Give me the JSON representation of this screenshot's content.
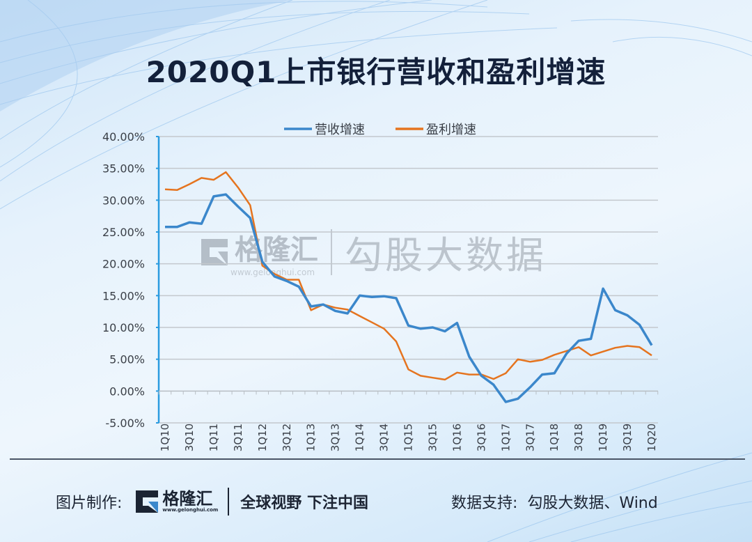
{
  "title": "2020Q1上市银行营收和盈利增速",
  "legend": [
    {
      "label": "营收增速",
      "color": "#3b87cb"
    },
    {
      "label": "盈利增速",
      "color": "#e5741f"
    }
  ],
  "watermark": {
    "logo_name": "格隆汇",
    "logo_url": "www.gelonghui.com",
    "brand": "勾股大数据"
  },
  "footer": {
    "credit_label": "图片制作:",
    "logo_name": "格隆汇",
    "logo_url": "www.gelonghui.com",
    "slogan": "全球视野 下注中国",
    "source_label": "数据支持:",
    "source_value": "勾股大数据、Wind"
  },
  "chart_data": {
    "type": "line",
    "title": "2020Q1上市银行营收和盈利增速",
    "xlabel": "",
    "ylabel": "",
    "ylim": [
      -5,
      40
    ],
    "yticks": [
      "40.00%",
      "35.00%",
      "30.00%",
      "25.00%",
      "20.00%",
      "15.00%",
      "10.00%",
      "5.00%",
      "0.00%",
      "-5.00%"
    ],
    "grid": true,
    "legend_position": "top",
    "x": [
      "1Q10",
      "2Q10",
      "3Q10",
      "4Q10",
      "1Q11",
      "2Q11",
      "3Q11",
      "4Q11",
      "1Q12",
      "2Q12",
      "3Q12",
      "4Q12",
      "1Q13",
      "2Q13",
      "3Q13",
      "4Q13",
      "1Q14",
      "2Q14",
      "3Q14",
      "4Q14",
      "1Q15",
      "2Q15",
      "3Q15",
      "4Q15",
      "1Q16",
      "2Q16",
      "3Q16",
      "4Q16",
      "1Q17",
      "2Q17",
      "3Q17",
      "4Q17",
      "1Q18",
      "2Q18",
      "3Q18",
      "4Q18",
      "1Q19",
      "2Q19",
      "3Q19",
      "4Q19",
      "1Q20"
    ],
    "x_tick_labels_shown": [
      "1Q10",
      "3Q10",
      "1Q11",
      "3Q11",
      "1Q12",
      "3Q12",
      "1Q13",
      "3Q13",
      "1Q14",
      "3Q14",
      "1Q15",
      "3Q15",
      "1Q16",
      "3Q16",
      "1Q17",
      "3Q17",
      "1Q18",
      "3Q18",
      "1Q19",
      "3Q19",
      "1Q20"
    ],
    "series": [
      {
        "name": "营收增速",
        "color": "#3b87cb",
        "values": [
          25.8,
          25.8,
          26.5,
          26.3,
          30.6,
          30.9,
          29.0,
          27.2,
          20.3,
          18.0,
          17.3,
          16.4,
          13.3,
          13.6,
          12.6,
          12.2,
          15.0,
          14.8,
          14.9,
          14.6,
          10.3,
          9.8,
          10.0,
          9.4,
          10.7,
          5.4,
          2.4,
          1.0,
          -1.7,
          -1.2,
          0.6,
          2.6,
          2.8,
          5.9,
          7.9,
          8.2,
          16.1,
          12.7,
          11.9,
          10.4,
          7.2
        ]
      },
      {
        "name": "盈利增速",
        "color": "#e5741f",
        "values": [
          31.7,
          31.6,
          32.5,
          33.5,
          33.2,
          34.4,
          32.0,
          29.2,
          19.7,
          18.4,
          17.5,
          17.5,
          12.7,
          13.6,
          13.1,
          12.8,
          11.8,
          10.8,
          9.8,
          7.8,
          3.4,
          2.4,
          2.1,
          1.8,
          2.9,
          2.6,
          2.6,
          1.9,
          2.8,
          5.0,
          4.6,
          4.9,
          5.7,
          6.3,
          6.9,
          5.6,
          6.2,
          6.8,
          7.1,
          6.9,
          5.6
        ]
      }
    ]
  }
}
